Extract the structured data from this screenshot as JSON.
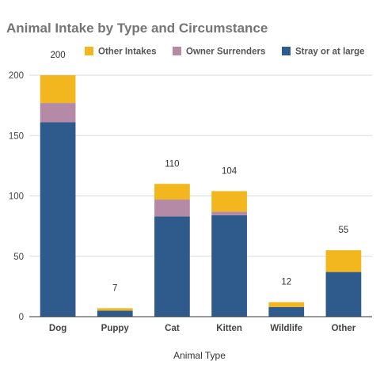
{
  "chart_data": {
    "type": "bar",
    "stacked": true,
    "title": "Animal Intake by Type and Circumstance",
    "xlabel": "Animal Type",
    "ylabel": "",
    "categories": [
      "Dog",
      "Puppy",
      "Cat",
      "Kitten",
      "Wildlife",
      "Other"
    ],
    "series": [
      {
        "name": "Stray or at large",
        "color": "#2f5b8c",
        "values": [
          161,
          5,
          83,
          84,
          8,
          37
        ]
      },
      {
        "name": "Owner Surrenders",
        "color": "#b48aa6",
        "values": [
          16,
          0,
          14,
          3,
          0,
          0
        ]
      },
      {
        "name": "Other Intakes",
        "color": "#f2b71f",
        "values": [
          23,
          2,
          13,
          17,
          4,
          18
        ]
      }
    ],
    "totals": [
      "200",
      "7",
      "110",
      "104",
      "12",
      "55"
    ],
    "ylim": [
      0,
      200
    ],
    "yticks": [
      0,
      50,
      100,
      150,
      200
    ],
    "legend_order": [
      "Other Intakes",
      "Owner Surrenders",
      "Stray or at large"
    ],
    "legend_position": "top",
    "grid": true
  }
}
